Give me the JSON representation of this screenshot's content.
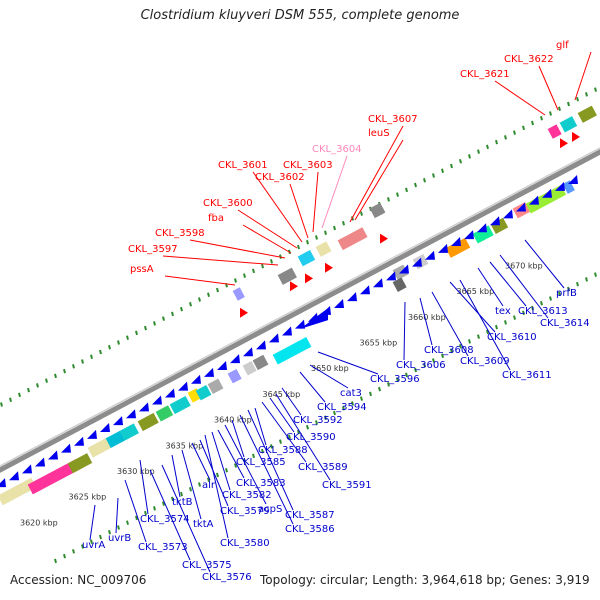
{
  "title": "Clostridium kluyveri DSM 555, complete genome",
  "footer": {
    "accession": "Accession: NC_009706",
    "stats": "Topology: circular; Length: 3,964,618 bp; Genes: 3,919"
  },
  "colors": {
    "forward_label": "#ff0000",
    "reverse_label": "#0000cc",
    "highlight_label": "#ff88bb",
    "backbone": "#999999",
    "tick": "#2e8b2e"
  },
  "scale_labels": [
    "3620 kbp",
    "3625 kbp",
    "3630 kbp",
    "3635 kbp",
    "3640 kbp",
    "3645 kbp",
    "3650 kbp",
    "3655 kbp",
    "3660 kbp",
    "3665 kbp",
    "3670 kbp"
  ],
  "forward_labels": [
    "pssA",
    "CKL_3597",
    "CKL_3598",
    "fba",
    "CKL_3600",
    "CKL_3601",
    "CKL_3602",
    "CKL_3603",
    "CKL_3604",
    "CKL_3607",
    "leuS",
    "CKL_3621",
    "CKL_3622",
    "glf"
  ],
  "reverse_labels": [
    "uvrA",
    "uvrB",
    "CKL_3573",
    "CKL_3574",
    "CKL_3575",
    "CKL_3576",
    "tktB",
    "tktA",
    "alr",
    "CKL_3579",
    "CKL_3580",
    "CKL_3582",
    "CKL_3583",
    "acpS",
    "CKL_3585",
    "CKL_3586",
    "CKL_3587",
    "CKL_3588",
    "CKL_3589",
    "CKL_3590",
    "CKL_3591",
    "CKL_3592",
    "CKL_3594",
    "cat3",
    "CKL_3596",
    "CKL_3606",
    "CKL_3608",
    "CKL_3609",
    "CKL_3610",
    "CKL_3611",
    "tex",
    "CKL_3613",
    "CKL_3614",
    "prfB"
  ]
}
